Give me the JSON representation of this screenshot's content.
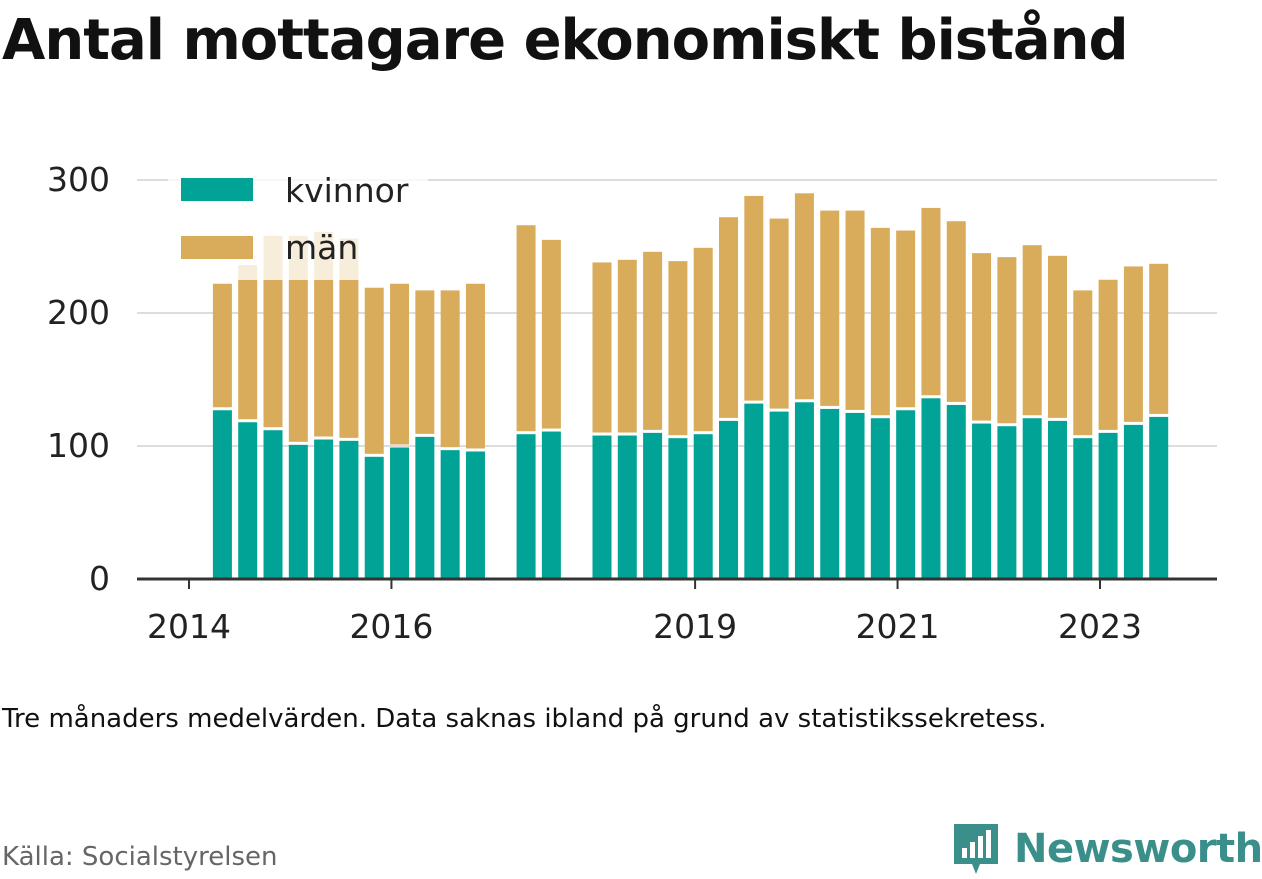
{
  "title": "Antal mottagare ekonomiskt bistånd",
  "subtitle": "Tre månaders medelvärden. Data saknas ibland på grund av statistikssekretess.",
  "source": "Källa: Socialstyrelsen",
  "brand": {
    "name": "Newsworthy",
    "icon": "bar-chart-logo-icon",
    "color": "#3a8f8a"
  },
  "colors": {
    "kvinnor": "#00a396",
    "man": "#d9ac5b",
    "grid": "#dddddd",
    "axis": "#333333"
  },
  "chart_data": {
    "type": "bar",
    "stacked": true,
    "ylim": [
      0,
      300
    ],
    "yticks": [
      0,
      100,
      200,
      300
    ],
    "xlabel": "",
    "ylabel": "",
    "xticks": [
      2014,
      2016,
      2019,
      2021,
      2023
    ],
    "legend": "top-left",
    "grid": true,
    "x": [
      2014.33,
      2014.58,
      2014.83,
      2015.08,
      2015.33,
      2015.58,
      2015.83,
      2016.08,
      2016.33,
      2016.58,
      2016.83,
      2017.33,
      2017.58,
      2018.08,
      2018.33,
      2018.58,
      2018.83,
      2019.08,
      2019.33,
      2019.58,
      2019.83,
      2020.08,
      2020.33,
      2020.58,
      2020.83,
      2021.08,
      2021.33,
      2021.58,
      2021.83,
      2022.08,
      2022.33,
      2022.58,
      2022.83,
      2023.08,
      2023.33,
      2023.58
    ],
    "series": [
      {
        "name": "kvinnor",
        "values": [
          128,
          119,
          113,
          102,
          106,
          105,
          93,
          100,
          108,
          98,
          97,
          110,
          112,
          109,
          109,
          111,
          107,
          110,
          120,
          133,
          127,
          134,
          129,
          126,
          122,
          128,
          137,
          132,
          118,
          116,
          122,
          120,
          107,
          111,
          117,
          123
        ]
      },
      {
        "name": "män",
        "values": [
          94,
          117,
          145,
          156,
          155,
          151,
          126,
          122,
          109,
          119,
          125,
          156,
          143,
          129,
          131,
          135,
          132,
          139,
          152,
          155,
          144,
          156,
          148,
          151,
          142,
          134,
          142,
          137,
          127,
          126,
          129,
          123,
          110,
          114,
          118,
          114
        ]
      }
    ]
  }
}
